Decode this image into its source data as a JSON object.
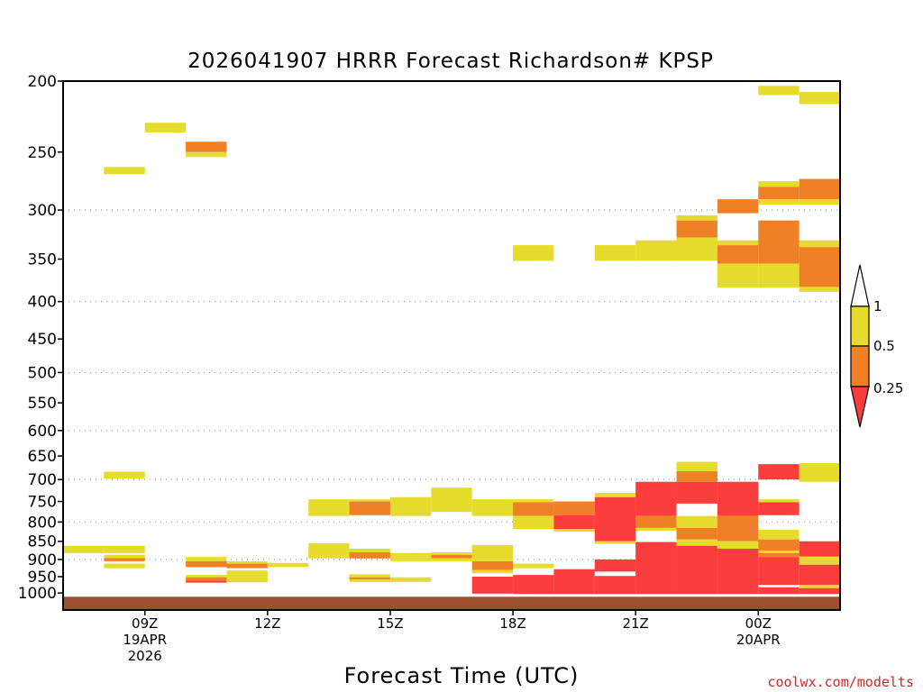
{
  "credit": "coolwx.com/modelts",
  "chart_data": {
    "type": "heatmap",
    "title": "2026041907 HRRR Forecast Richardson# KPSP",
    "xlabel": "Forecast Time (UTC)",
    "ylabel": "",
    "y_axis": {
      "scale": "log",
      "inverted": true,
      "range_hPa": [
        200,
        1055
      ],
      "ticks": [
        200,
        250,
        300,
        350,
        400,
        450,
        500,
        550,
        600,
        650,
        700,
        750,
        800,
        850,
        900,
        950,
        1000
      ],
      "tick_labels": [
        "200",
        "250",
        "300",
        "350",
        "400",
        "450",
        "500",
        "550",
        "600",
        "650",
        "700",
        "750",
        "800",
        "850",
        "900",
        "950",
        "1000"
      ],
      "gridlines_at": [
        300,
        400,
        500,
        600,
        700,
        800,
        900
      ]
    },
    "x_axis": {
      "range_hours": [
        7,
        26
      ],
      "ticks": [
        {
          "hour": 9,
          "lines": [
            "09Z",
            "19APR",
            "2026"
          ]
        },
        {
          "hour": 12,
          "lines": [
            "12Z"
          ]
        },
        {
          "hour": 15,
          "lines": [
            "15Z"
          ]
        },
        {
          "hour": 18,
          "lines": [
            "18Z"
          ]
        },
        {
          "hour": 21,
          "lines": [
            "21Z"
          ]
        },
        {
          "hour": 24,
          "lines": [
            "00Z",
            "20APR"
          ]
        }
      ]
    },
    "legend": {
      "position": "right",
      "entries": [
        {
          "label": "1",
          "color": "#e5dc2e",
          "range": "0.5-1"
        },
        {
          "label": "0.5",
          "color": "#ef8025",
          "range": "0.25-0.5"
        },
        {
          "label": "0.25",
          "color": "#fb3d3d",
          "range": "<0.25"
        }
      ]
    },
    "colors": {
      "y": "#e5dc2e",
      "o": "#ef8025",
      "r": "#fb3d3d",
      "ground": "#9c5030"
    },
    "ground_pressure_hPa": 1012,
    "cells": [
      {
        "h": 7,
        "p1": 862,
        "p2": 882,
        "c": "y"
      },
      {
        "h": 8,
        "p1": 262,
        "p2": 268,
        "c": "y"
      },
      {
        "h": 8,
        "p1": 683,
        "p2": 698,
        "c": "y"
      },
      {
        "h": 8,
        "p1": 862,
        "p2": 882,
        "c": "y"
      },
      {
        "h": 8,
        "p1": 887,
        "p2": 896,
        "c": "y"
      },
      {
        "h": 8,
        "p1": 896,
        "p2": 905,
        "c": "o"
      },
      {
        "h": 8,
        "p1": 912,
        "p2": 925,
        "c": "y"
      },
      {
        "h": 9,
        "p1": 228,
        "p2": 235,
        "c": "y"
      },
      {
        "h": 10,
        "p1": 242,
        "p2": 250,
        "c": "o"
      },
      {
        "h": 10,
        "p1": 250,
        "p2": 254,
        "c": "y"
      },
      {
        "h": 10,
        "p1": 893,
        "p2": 905,
        "c": "y"
      },
      {
        "h": 10,
        "p1": 905,
        "p2": 922,
        "c": "o"
      },
      {
        "h": 10,
        "p1": 945,
        "p2": 952,
        "c": "y"
      },
      {
        "h": 10,
        "p1": 952,
        "p2": 962,
        "c": "o"
      },
      {
        "h": 10,
        "p1": 962,
        "p2": 968,
        "c": "r"
      },
      {
        "h": 11,
        "p1": 905,
        "p2": 912,
        "c": "y"
      },
      {
        "h": 11,
        "p1": 912,
        "p2": 925,
        "c": "o"
      },
      {
        "h": 11,
        "p1": 932,
        "p2": 967,
        "c": "y"
      },
      {
        "h": 12,
        "p1": 910,
        "p2": 922,
        "c": "y"
      },
      {
        "h": 13,
        "p1": 745,
        "p2": 785,
        "c": "y"
      },
      {
        "h": 13,
        "p1": 855,
        "p2": 897,
        "c": "y"
      },
      {
        "h": 14,
        "p1": 745,
        "p2": 750,
        "c": "y"
      },
      {
        "h": 14,
        "p1": 750,
        "p2": 783,
        "c": "o"
      },
      {
        "h": 14,
        "p1": 870,
        "p2": 880,
        "c": "y"
      },
      {
        "h": 14,
        "p1": 880,
        "p2": 897,
        "c": "o"
      },
      {
        "h": 14,
        "p1": 943,
        "p2": 952,
        "c": "y"
      },
      {
        "h": 14,
        "p1": 952,
        "p2": 958,
        "c": "o"
      },
      {
        "h": 14,
        "p1": 958,
        "p2": 966,
        "c": "y"
      },
      {
        "h": 15,
        "p1": 740,
        "p2": 785,
        "c": "y"
      },
      {
        "h": 15,
        "p1": 882,
        "p2": 905,
        "c": "y"
      },
      {
        "h": 15,
        "p1": 952,
        "p2": 966,
        "c": "y"
      },
      {
        "h": 16,
        "p1": 718,
        "p2": 775,
        "c": "y"
      },
      {
        "h": 16,
        "p1": 880,
        "p2": 887,
        "c": "y"
      },
      {
        "h": 16,
        "p1": 887,
        "p2": 897,
        "c": "o"
      },
      {
        "h": 16,
        "p1": 897,
        "p2": 905,
        "c": "y"
      },
      {
        "h": 17,
        "p1": 745,
        "p2": 785,
        "c": "y"
      },
      {
        "h": 17,
        "p1": 860,
        "p2": 905,
        "c": "y"
      },
      {
        "h": 17,
        "p1": 905,
        "p2": 930,
        "c": "o"
      },
      {
        "h": 17,
        "p1": 930,
        "p2": 940,
        "c": "y"
      },
      {
        "h": 17,
        "p1": 950,
        "p2": 1002,
        "c": "r"
      },
      {
        "h": 18,
        "p1": 335,
        "p2": 352,
        "c": "y"
      },
      {
        "h": 18,
        "p1": 745,
        "p2": 752,
        "c": "y"
      },
      {
        "h": 18,
        "p1": 752,
        "p2": 785,
        "c": "o"
      },
      {
        "h": 18,
        "p1": 785,
        "p2": 818,
        "c": "y"
      },
      {
        "h": 18,
        "p1": 912,
        "p2": 925,
        "c": "y"
      },
      {
        "h": 18,
        "p1": 945,
        "p2": 1003,
        "c": "r"
      },
      {
        "h": 19,
        "p1": 750,
        "p2": 783,
        "c": "o"
      },
      {
        "h": 19,
        "p1": 783,
        "p2": 818,
        "c": "r"
      },
      {
        "h": 19,
        "p1": 818,
        "p2": 825,
        "c": "y"
      },
      {
        "h": 19,
        "p1": 928,
        "p2": 1003,
        "c": "r"
      },
      {
        "h": 20,
        "p1": 335,
        "p2": 352,
        "c": "y"
      },
      {
        "h": 20,
        "p1": 730,
        "p2": 740,
        "c": "y"
      },
      {
        "h": 20,
        "p1": 740,
        "p2": 850,
        "c": "r"
      },
      {
        "h": 20,
        "p1": 850,
        "p2": 857,
        "c": "y"
      },
      {
        "h": 20,
        "p1": 900,
        "p2": 935,
        "c": "r"
      },
      {
        "h": 20,
        "p1": 948,
        "p2": 1003,
        "c": "r"
      },
      {
        "h": 21,
        "p1": 330,
        "p2": 352,
        "c": "y"
      },
      {
        "h": 21,
        "p1": 705,
        "p2": 785,
        "c": "r"
      },
      {
        "h": 21,
        "p1": 785,
        "p2": 815,
        "c": "o"
      },
      {
        "h": 21,
        "p1": 815,
        "p2": 822,
        "c": "y"
      },
      {
        "h": 21,
        "p1": 852,
        "p2": 1003,
        "c": "r"
      },
      {
        "h": 22,
        "p1": 305,
        "p2": 310,
        "c": "y"
      },
      {
        "h": 22,
        "p1": 310,
        "p2": 327,
        "c": "o"
      },
      {
        "h": 22,
        "p1": 327,
        "p2": 352,
        "c": "y"
      },
      {
        "h": 22,
        "p1": 662,
        "p2": 682,
        "c": "y"
      },
      {
        "h": 22,
        "p1": 682,
        "p2": 705,
        "c": "o"
      },
      {
        "h": 22,
        "p1": 705,
        "p2": 755,
        "c": "r"
      },
      {
        "h": 22,
        "p1": 785,
        "p2": 815,
        "c": "y"
      },
      {
        "h": 22,
        "p1": 815,
        "p2": 845,
        "c": "o"
      },
      {
        "h": 22,
        "p1": 845,
        "p2": 862,
        "c": "y"
      },
      {
        "h": 22,
        "p1": 862,
        "p2": 1003,
        "c": "r"
      },
      {
        "h": 23,
        "p1": 290,
        "p2": 303,
        "c": "o"
      },
      {
        "h": 23,
        "p1": 330,
        "p2": 335,
        "c": "y"
      },
      {
        "h": 23,
        "p1": 335,
        "p2": 355,
        "c": "o"
      },
      {
        "h": 23,
        "p1": 355,
        "p2": 383,
        "c": "y"
      },
      {
        "h": 23,
        "p1": 705,
        "p2": 785,
        "c": "r"
      },
      {
        "h": 23,
        "p1": 785,
        "p2": 850,
        "c": "o"
      },
      {
        "h": 23,
        "p1": 850,
        "p2": 870,
        "c": "y"
      },
      {
        "h": 23,
        "p1": 870,
        "p2": 1003,
        "c": "r"
      },
      {
        "h": 24,
        "p1": 203,
        "p2": 209,
        "c": "y"
      },
      {
        "h": 24,
        "p1": 274,
        "p2": 279,
        "c": "y"
      },
      {
        "h": 24,
        "p1": 279,
        "p2": 290,
        "c": "o"
      },
      {
        "h": 24,
        "p1": 290,
        "p2": 295,
        "c": "y"
      },
      {
        "h": 24,
        "p1": 310,
        "p2": 355,
        "c": "o"
      },
      {
        "h": 24,
        "p1": 355,
        "p2": 383,
        "c": "y"
      },
      {
        "h": 24,
        "p1": 667,
        "p2": 700,
        "c": "r"
      },
      {
        "h": 24,
        "p1": 745,
        "p2": 752,
        "c": "y"
      },
      {
        "h": 24,
        "p1": 752,
        "p2": 783,
        "c": "r"
      },
      {
        "h": 24,
        "p1": 820,
        "p2": 845,
        "c": "y"
      },
      {
        "h": 24,
        "p1": 845,
        "p2": 875,
        "c": "o"
      },
      {
        "h": 24,
        "p1": 875,
        "p2": 882,
        "c": "y"
      },
      {
        "h": 24,
        "p1": 882,
        "p2": 893,
        "c": "o"
      },
      {
        "h": 24,
        "p1": 893,
        "p2": 975,
        "c": "r"
      },
      {
        "h": 24,
        "p1": 982,
        "p2": 1003,
        "c": "r"
      },
      {
        "h": 25,
        "p1": 207,
        "p2": 215,
        "c": "y"
      },
      {
        "h": 25,
        "p1": 272,
        "p2": 290,
        "c": "o"
      },
      {
        "h": 25,
        "p1": 290,
        "p2": 295,
        "c": "y"
      },
      {
        "h": 25,
        "p1": 330,
        "p2": 337,
        "c": "y"
      },
      {
        "h": 25,
        "p1": 337,
        "p2": 382,
        "c": "o"
      },
      {
        "h": 25,
        "p1": 382,
        "p2": 388,
        "c": "y"
      },
      {
        "h": 25,
        "p1": 665,
        "p2": 705,
        "c": "y"
      },
      {
        "h": 25,
        "p1": 850,
        "p2": 892,
        "c": "r"
      },
      {
        "h": 25,
        "p1": 892,
        "p2": 915,
        "c": "y"
      },
      {
        "h": 25,
        "p1": 915,
        "p2": 975,
        "c": "r"
      },
      {
        "h": 25,
        "p1": 975,
        "p2": 985,
        "c": "y"
      },
      {
        "h": 25,
        "p1": 985,
        "p2": 1003,
        "c": "r"
      }
    ]
  }
}
